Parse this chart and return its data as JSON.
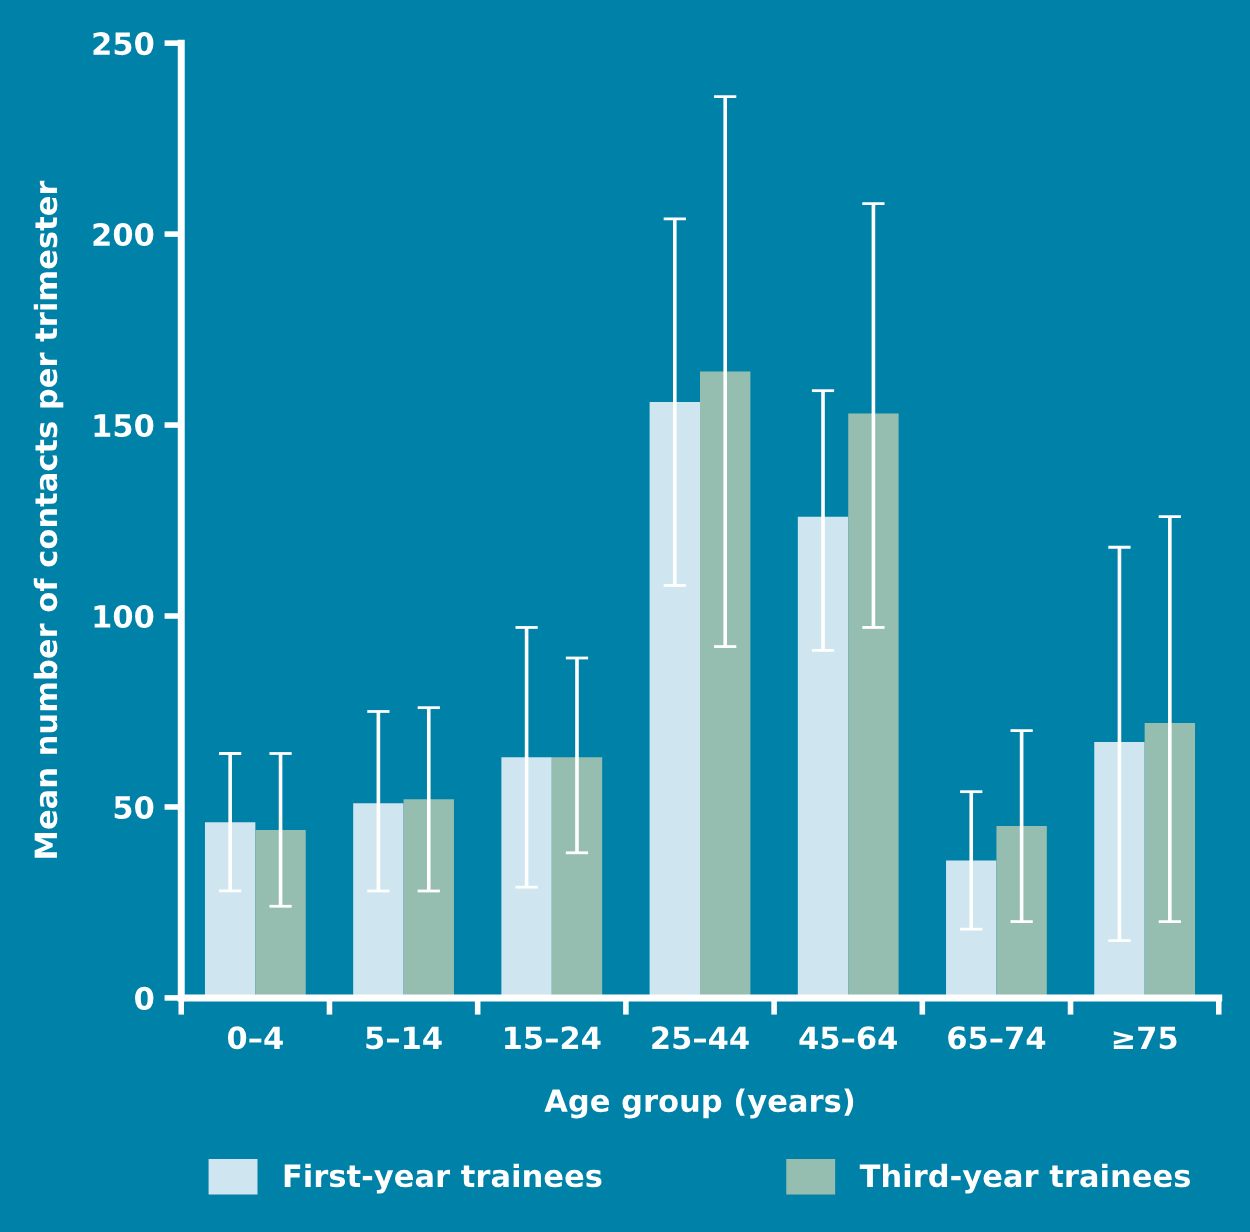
{
  "chart_data": {
    "type": "bar",
    "xlabel": "Age group (years)",
    "ylabel": "Mean number of contacts per trimester",
    "categories": [
      "0–4",
      "5–14",
      "15–24",
      "25–44",
      "45–64",
      "65–74",
      "≥75"
    ],
    "series": [
      {
        "name": "First-year trainees",
        "color": "#cfe5ef",
        "values": [
          46,
          51,
          63,
          156,
          126,
          36,
          67
        ],
        "errors": [
          [
            28,
            64
          ],
          [
            28,
            75
          ],
          [
            29,
            97
          ],
          [
            108,
            204
          ],
          [
            91,
            159
          ],
          [
            18,
            54
          ],
          [
            15,
            118
          ]
        ]
      },
      {
        "name": "Third-year trainees",
        "color": "#95bdb0",
        "values": [
          44,
          52,
          63,
          164,
          153,
          45,
          72
        ],
        "errors": [
          [
            24,
            64
          ],
          [
            28,
            76
          ],
          [
            38,
            89
          ],
          [
            92,
            236
          ],
          [
            97,
            208
          ],
          [
            20,
            70
          ],
          [
            20,
            126
          ]
        ]
      }
    ],
    "ylim": [
      0,
      250
    ],
    "yticks": [
      0,
      50,
      100,
      150,
      200,
      250
    ],
    "grid": false,
    "legend": "bottom"
  }
}
